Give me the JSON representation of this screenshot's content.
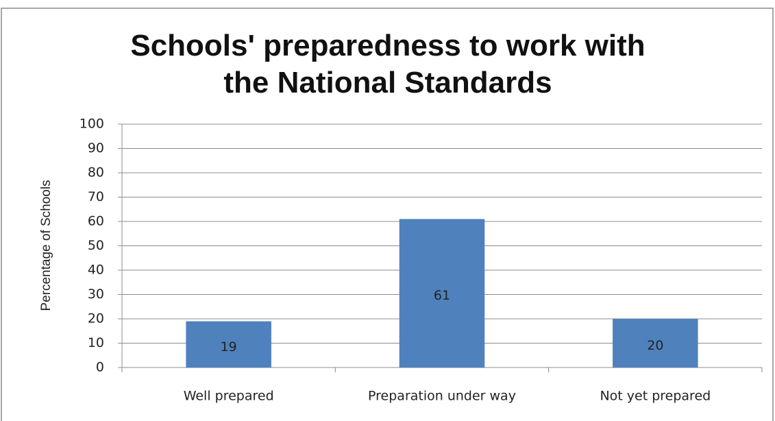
{
  "chart_data": {
    "type": "bar",
    "title": "Schools' preparedness to work with the National Standards",
    "y_label": "Percentage of Schools",
    "categories": [
      "Well prepared",
      "Preparation under way",
      "Not yet prepared"
    ],
    "values": [
      19,
      61,
      20
    ],
    "color": "#4f81bd",
    "ylim": [
      0,
      100
    ],
    "yticks": [
      0,
      10,
      20,
      30,
      40,
      50,
      60,
      70,
      80,
      90,
      100
    ],
    "grid": true
  }
}
